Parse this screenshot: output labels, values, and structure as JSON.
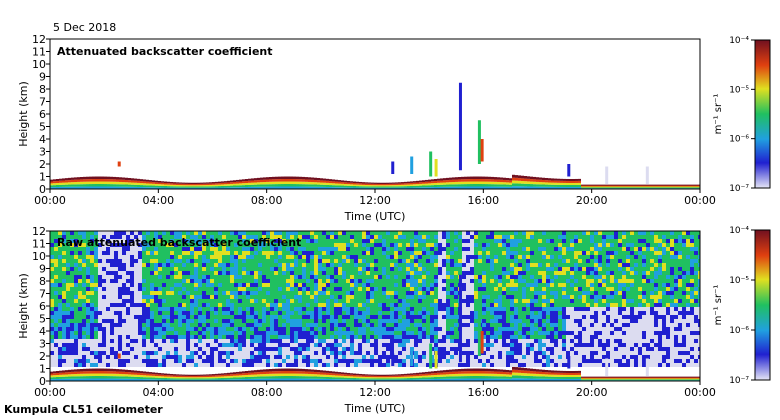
{
  "date": "5 Dec 2018",
  "footer": "Kumpula CL51 ceilometer",
  "colors": {
    "scale": [
      "#dcdcf0",
      "#2020d0",
      "#20a0e0",
      "#20c060",
      "#e0e020",
      "#e04010",
      "#701020"
    ]
  },
  "chart_data": [
    {
      "type": "heatmap",
      "title": "Attenuated backscatter coefficient",
      "xlabel": "Time (UTC)",
      "ylabel": "Height (km)",
      "x_tick_labels": [
        "00:00",
        "04:00",
        "08:00",
        "12:00",
        "16:00",
        "20:00",
        "00:00"
      ],
      "y_tick_labels": [
        "0",
        "1",
        "2",
        "3",
        "4",
        "5",
        "6",
        "7",
        "8",
        "9",
        "10",
        "11",
        "12"
      ],
      "xlim_hours": [
        0,
        24
      ],
      "ylim_km": [
        0,
        12
      ],
      "colorbar": {
        "unit_label": "m⁻¹ sr⁻¹",
        "scale": "log",
        "tick_labels": [
          "10⁻⁴",
          "10⁻⁵",
          "10⁻⁶",
          "10⁻⁷"
        ]
      }
    },
    {
      "type": "heatmap",
      "title": "Raw attenuated backscatter coefficient",
      "xlabel": "Time (UTC)",
      "ylabel": "Height (km)",
      "x_tick_labels": [
        "00:00",
        "04:00",
        "08:00",
        "12:00",
        "16:00",
        "20:00",
        "00:00"
      ],
      "y_tick_labels": [
        "0",
        "1",
        "2",
        "3",
        "4",
        "5",
        "6",
        "7",
        "8",
        "9",
        "10",
        "11",
        "12"
      ],
      "xlim_hours": [
        0,
        24
      ],
      "ylim_km": [
        0,
        12
      ],
      "colorbar": {
        "unit_label": "m⁻¹ sr⁻¹",
        "scale": "log",
        "tick_labels": [
          "10⁻⁴",
          "10⁻⁵",
          "10⁻⁶",
          "10⁻⁷"
        ]
      }
    }
  ]
}
